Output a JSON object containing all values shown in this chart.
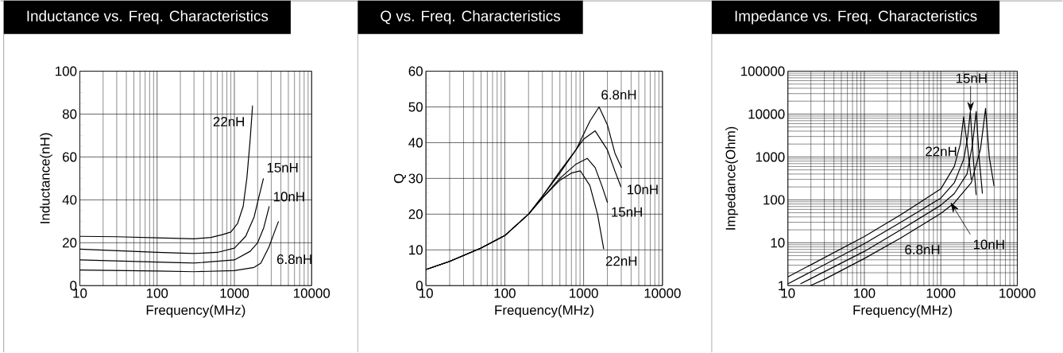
{
  "chart_data": [
    {
      "type": "line",
      "title": "Inductance vs. Freq. Characteristics",
      "xlabel": "Frequency(MHz)",
      "ylabel": "Inductance(nH)",
      "log": "x",
      "grid": true,
      "xlim": [
        10,
        10000
      ],
      "ylim": [
        0,
        100
      ],
      "xticks": [
        10,
        100,
        1000,
        10000
      ],
      "yticks": [
        0,
        20,
        40,
        60,
        80,
        100
      ],
      "series": [
        {
          "name": "22nH",
          "color": "#000000",
          "x": [
            10,
            30,
            100,
            300,
            500,
            700,
            900,
            1100,
            1300,
            1450,
            1600,
            1720
          ],
          "values": [
            23,
            22.8,
            22.3,
            21.8,
            22.5,
            23.8,
            25,
            29,
            37,
            50,
            68,
            84
          ]
        },
        {
          "name": "15nH",
          "color": "#000000",
          "x": [
            10,
            100,
            300,
            600,
            1000,
            1400,
            1800,
            2100,
            2380
          ],
          "values": [
            17,
            15.5,
            15,
            15.5,
            17.5,
            23,
            32,
            42,
            50
          ]
        },
        {
          "name": "10nH",
          "color": "#000000",
          "x": [
            10,
            100,
            300,
            1000,
            1600,
            2000,
            2400,
            2830
          ],
          "values": [
            12,
            11,
            10.5,
            12,
            16,
            20,
            27,
            37
          ]
        },
        {
          "name": "6.8nH",
          "color": "#000000",
          "x": [
            10,
            100,
            300,
            1000,
            1800,
            2200,
            2800,
            3300,
            3730
          ],
          "values": [
            7.3,
            6.8,
            6.5,
            7,
            8.5,
            10.5,
            18,
            25,
            30
          ]
        }
      ]
    },
    {
      "type": "line",
      "title": "Q vs. Freq. Characteristics",
      "xlabel": "Frequency(MHz)",
      "ylabel": "Q",
      "log": "x",
      "grid": true,
      "xlim": [
        10,
        10000
      ],
      "ylim": [
        0,
        60
      ],
      "xticks": [
        10,
        100,
        1000,
        10000
      ],
      "yticks": [
        0,
        10,
        20,
        30,
        40,
        50,
        60
      ],
      "series": [
        {
          "name": "6.8nH",
          "color": "#000000",
          "x": [
            10,
            20,
            50,
            100,
            200,
            300,
            500,
            800,
            1200,
            1570,
            2000,
            2500,
            3030
          ],
          "values": [
            4.5,
            6.8,
            10.5,
            14,
            20,
            25,
            32,
            38,
            46,
            50,
            45,
            37,
            33
          ]
        },
        {
          "name": "10nH",
          "color": "#000000",
          "x": [
            10,
            20,
            50,
            100,
            200,
            300,
            500,
            800,
            1000,
            1400,
            2000,
            2500,
            2980
          ],
          "values": [
            4.5,
            6.8,
            10.5,
            14,
            20,
            25,
            31.5,
            38,
            41,
            43.3,
            38,
            32,
            27.6
          ]
        },
        {
          "name": "15nH",
          "color": "#000000",
          "x": [
            10,
            20,
            50,
            100,
            200,
            300,
            500,
            800,
            1110,
            1400,
            1700,
            2010
          ],
          "values": [
            4.5,
            6.8,
            10.5,
            14,
            20,
            24.5,
            30,
            34,
            35.6,
            33,
            28,
            23.2
          ]
        },
        {
          "name": "22nH",
          "color": "#000000",
          "x": [
            10,
            20,
            50,
            100,
            200,
            300,
            500,
            700,
            910,
            1200,
            1500,
            1800
          ],
          "values": [
            4.5,
            6.8,
            10.5,
            14,
            20,
            24.5,
            29.5,
            31.5,
            32.1,
            28,
            20,
            10.2
          ]
        }
      ]
    },
    {
      "type": "line",
      "title": "Impedance vs. Freq. Characteristics",
      "xlabel": "Frequency(MHz)",
      "ylabel": "Impedance(Ohm)",
      "log": "xy",
      "grid": true,
      "xlim": [
        10,
        10000
      ],
      "ylim": [
        1,
        100000
      ],
      "xticks": [
        10,
        100,
        1000,
        10000
      ],
      "yticks": [
        1,
        10,
        100,
        1000,
        10000,
        100000
      ],
      "series": [
        {
          "name": "22nH",
          "color": "#000000",
          "x": [
            10,
            100,
            300,
            1000,
            1500,
            1800,
            1990,
            2250,
            2500
          ],
          "values": [
            1.6,
            14,
            45,
            180,
            600,
            2000,
            8600,
            1500,
            300
          ]
        },
        {
          "name": "15nH",
          "color": "#000000",
          "x": [
            10,
            100,
            300,
            1000,
            1500,
            2000,
            2250,
            2430,
            2650,
            2900
          ],
          "values": [
            1.1,
            9.5,
            30,
            110,
            250,
            900,
            3000,
            11400,
            1000,
            130
          ]
        },
        {
          "name": "10nH",
          "color": "#000000",
          "x": [
            14.6,
            100,
            300,
            1000,
            1500,
            2200,
            2600,
            2900,
            3200,
            3500
          ],
          "values": [
            1.1,
            6.3,
            20,
            75,
            140,
            400,
            2000,
            11400,
            800,
            140
          ]
        },
        {
          "name": "6.8nH",
          "color": "#000000",
          "x": [
            19.7,
            30,
            100,
            300,
            1000,
            1500,
            2500,
            3300,
            3850,
            4300,
            4970
          ],
          "values": [
            1,
            1.4,
            4.3,
            13,
            48,
            85,
            250,
            1500,
            13500,
            1000,
            210
          ]
        }
      ]
    }
  ]
}
